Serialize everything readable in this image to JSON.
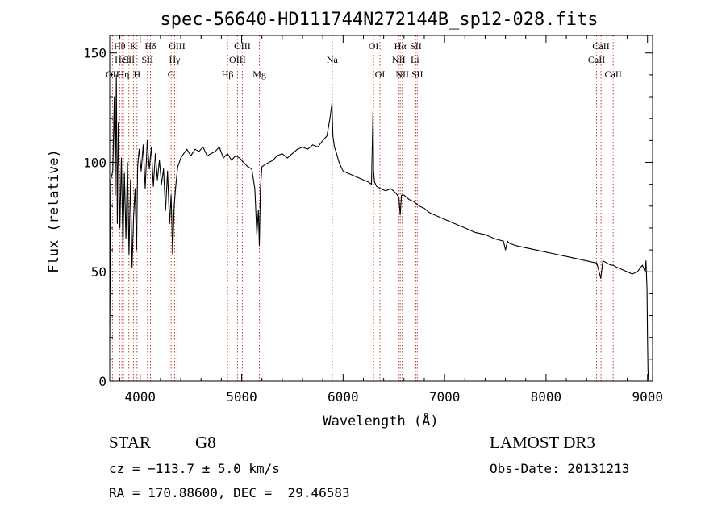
{
  "chart_data": {
    "type": "line",
    "title": "spec-56640-HD111744N272144B_sp12-028.fits",
    "xlabel": "Wavelength (Å)",
    "ylabel": "Flux (relative)",
    "xlim": [
      3700,
      9050
    ],
    "ylim": [
      0,
      158
    ],
    "xticks": [
      4000,
      5000,
      6000,
      7000,
      8000,
      9000
    ],
    "yticks": [
      0,
      50,
      100,
      150
    ],
    "xtick_labels": [
      "4000",
      "5000",
      "6000",
      "7000",
      "8000",
      "9000"
    ],
    "ytick_labels": [
      "0",
      "50",
      "100",
      "150"
    ],
    "grid": false,
    "line_color": "#000000",
    "marker_color": "#c0392b",
    "series": [
      {
        "name": "spectrum",
        "x": [
          3700,
          3710,
          3730,
          3745,
          3755,
          3765,
          3775,
          3785,
          3800,
          3815,
          3830,
          3845,
          3860,
          3875,
          3890,
          3905,
          3920,
          3935,
          3950,
          3965,
          3975,
          3990,
          4010,
          4030,
          4050,
          4070,
          4090,
          4110,
          4130,
          4150,
          4170,
          4190,
          4210,
          4230,
          4250,
          4270,
          4290,
          4305,
          4320,
          4335,
          4350,
          4370,
          4400,
          4430,
          4460,
          4500,
          4540,
          4580,
          4620,
          4660,
          4700,
          4740,
          4780,
          4820,
          4861,
          4900,
          4940,
          4980,
          5020,
          5060,
          5100,
          5130,
          5150,
          5165,
          5175,
          5185,
          5200,
          5230,
          5270,
          5310,
          5350,
          5400,
          5450,
          5500,
          5550,
          5600,
          5650,
          5700,
          5750,
          5800,
          5840,
          5870,
          5890,
          5900,
          5915,
          5930,
          5960,
          6000,
          6050,
          6100,
          6150,
          6200,
          6250,
          6280,
          6295,
          6300,
          6310,
          6330,
          6370,
          6420,
          6470,
          6520,
          6550,
          6563,
          6575,
          6600,
          6650,
          6700,
          6750,
          6800,
          6850,
          6900,
          6950,
          7000,
          7100,
          7200,
          7300,
          7400,
          7500,
          7580,
          7600,
          7620,
          7640,
          7700,
          7800,
          7900,
          8000,
          8100,
          8200,
          8300,
          8400,
          8500,
          8540,
          8560,
          8600,
          8640,
          8660,
          8700,
          8750,
          8800,
          8850,
          8900,
          8950,
          8975,
          8985,
          8995,
          9000,
          9005,
          9010
        ],
        "y": [
          18,
          92,
          96,
          130,
          85,
          140,
          72,
          118,
          70,
          102,
          60,
          95,
          65,
          100,
          58,
          92,
          52,
          75,
          88,
          60,
          98,
          106,
          96,
          108,
          88,
          110,
          97,
          107,
          89,
          104,
          92,
          101,
          90,
          97,
          78,
          96,
          72,
          85,
          58,
          80,
          89,
          98,
          102,
          104,
          106,
          103,
          106,
          105,
          107,
          103,
          104,
          105,
          107,
          102,
          104,
          101,
          103,
          102,
          100,
          98,
          97,
          88,
          67,
          78,
          62,
          88,
          98,
          99,
          100,
          101,
          103,
          104,
          102,
          104,
          106,
          107,
          106,
          108,
          107,
          110,
          112,
          120,
          127,
          112,
          107,
          105,
          100,
          96,
          95,
          94,
          93,
          92,
          91,
          90,
          123,
          96,
          91,
          89,
          88,
          87,
          88,
          86,
          84,
          76,
          85,
          85,
          83,
          82,
          80,
          79,
          77,
          76,
          75,
          74,
          72,
          70,
          68,
          67,
          65,
          64,
          60,
          64,
          63,
          62,
          61,
          60,
          59,
          58,
          57,
          56,
          55,
          54,
          47,
          55,
          54,
          53,
          53,
          52,
          51,
          50,
          49,
          50,
          53,
          50,
          55,
          42,
          20,
          5,
          0
        ]
      }
    ],
    "line_markers": [
      {
        "label": "OII",
        "x": 3727,
        "tier": 3
      },
      {
        "label": "Hθ",
        "x": 3798,
        "tier": 1
      },
      {
        "label": "HeI",
        "x": 3820,
        "tier": 2
      },
      {
        "label": "Hη",
        "x": 3835,
        "tier": 3
      },
      {
        "label": "SII",
        "x": 3889,
        "tier": 2
      },
      {
        "label": "K",
        "x": 3934,
        "tier": 1
      },
      {
        "label": "H",
        "x": 3969,
        "tier": 3
      },
      {
        "label": "Hδ",
        "x": 4102,
        "tier": 1
      },
      {
        "label": "SII",
        "x": 4072,
        "tier": 2
      },
      {
        "label": "OIII",
        "x": 4363,
        "tier": 1
      },
      {
        "label": "Hγ",
        "x": 4340,
        "tier": 2
      },
      {
        "label": "G",
        "x": 4305,
        "tier": 3
      },
      {
        "label": "Hβ",
        "x": 4861,
        "tier": 3
      },
      {
        "label": "OIII",
        "x": 4959,
        "tier": 2
      },
      {
        "label": "OIII",
        "x": 5007,
        "tier": 1
      },
      {
        "label": "Mg",
        "x": 5175,
        "tier": 3
      },
      {
        "label": "Na",
        "x": 5893,
        "tier": 2
      },
      {
        "label": "OI",
        "x": 6300,
        "tier": 1
      },
      {
        "label": "OI",
        "x": 6363,
        "tier": 3
      },
      {
        "label": "NII",
        "x": 6548,
        "tier": 2
      },
      {
        "label": "Hα",
        "x": 6563,
        "tier": 1
      },
      {
        "label": "NII",
        "x": 6583,
        "tier": 3
      },
      {
        "label": "SII",
        "x": 6716,
        "tier": 1
      },
      {
        "label": "Li",
        "x": 6708,
        "tier": 2
      },
      {
        "label": "SII",
        "x": 6731,
        "tier": 3
      },
      {
        "label": "CaII",
        "x": 8498,
        "tier": 2
      },
      {
        "label": "CaII",
        "x": 8542,
        "tier": 1
      },
      {
        "label": "CaII",
        "x": 8662,
        "tier": 3
      }
    ]
  },
  "info": {
    "object_type": "STAR",
    "subclass": "G8",
    "survey": "LAMOST DR3",
    "redshift_line": "cz = −113.7 ± 5.0 km/s",
    "obs_date_line": "Obs-Date: 20131213",
    "coords_line": "RA = 170.88600, DEC =  29.46583"
  }
}
